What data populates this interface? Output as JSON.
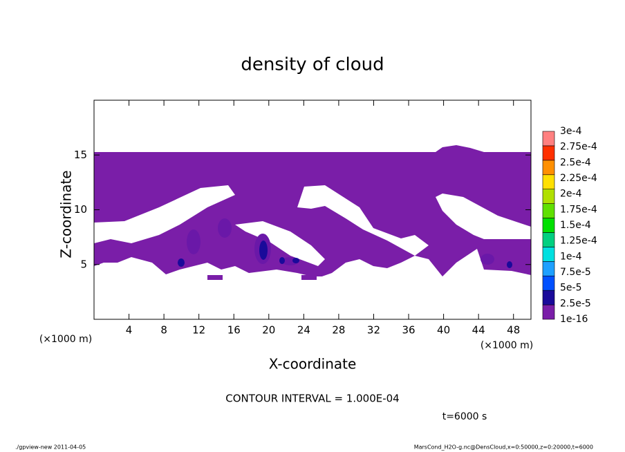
{
  "chart_data": {
    "type": "contour",
    "title": "density of cloud",
    "x_label": "X-coordinate",
    "y_label": "Z-coordinate",
    "x_unit": "(×1000 m)",
    "y_unit": "(×1000 m)",
    "xlim": [
      0,
      50
    ],
    "xticks": [
      4,
      8,
      12,
      16,
      20,
      24,
      28,
      32,
      36,
      40,
      44,
      48
    ],
    "ylim": [
      0,
      20
    ],
    "yticks": [
      5,
      10,
      15
    ],
    "contour_interval": "CONTOUR INTERVAL = 1.000E-04",
    "time_label": "t=6000 s",
    "footer_left": "./gpview-new  2011-04-05",
    "footer_right": "MarsCond_H2O-g.nc@DensCloud,x=0:50000,z=0:20000,t=6000",
    "colorbar": {
      "levels": [
        1e-16,
        {
          "value": 2.5e-05,
          "label": "2.5e-5"
        },
        {
          "value": 5e-05,
          "label": "5e-5"
        },
        {
          "value": 7.5e-05,
          "label": "7.5e-5"
        },
        {
          "value": 0.0001,
          "label": "1e-4"
        },
        {
          "value": 0.000125,
          "label": "1.25e-4"
        },
        {
          "value": 0.00015,
          "label": "1.5e-4"
        },
        {
          "value": 0.000175,
          "label": "1.75e-4"
        },
        {
          "value": 0.0002,
          "label": "2e-4"
        },
        {
          "value": 0.000225,
          "label": "2.25e-4"
        },
        {
          "value": 0.00025,
          "label": "2.5e-4"
        },
        {
          "value": 0.000275,
          "label": "2.75e-4"
        },
        {
          "value": 0.0003,
          "label": "3e-4"
        }
      ],
      "colors": [
        "#7a1ea8",
        "#1a0a9a",
        "#0050ff",
        "#1ea0ff",
        "#00e0e0",
        "#00d080",
        "#00e000",
        "#60e000",
        "#b0e000",
        "#ffe000",
        "#ff9000",
        "#ff3000",
        "#ff8080"
      ]
    }
  }
}
